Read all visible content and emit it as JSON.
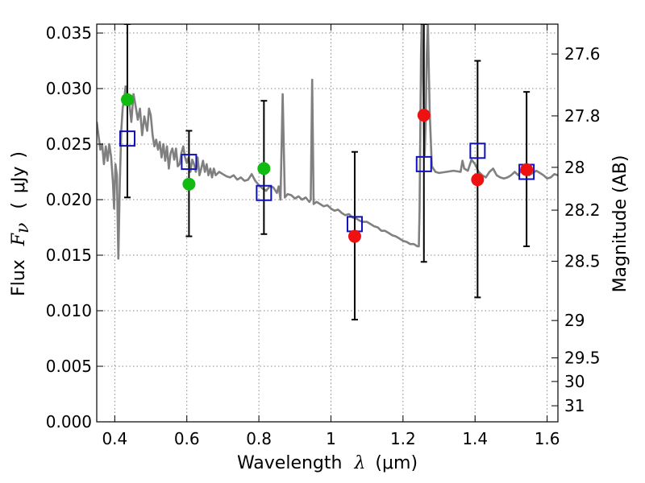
{
  "chart_data": {
    "type": "scatter",
    "xlabel": {
      "text": "Wavelength",
      "symbol": "λ",
      "unit_open": "(",
      "unit": "μm",
      "unit_close": ")"
    },
    "ylabel": {
      "text": "Flux",
      "symbol": "F",
      "subscript": "ν",
      "unit_open": "(",
      "unit": "μJy",
      "unit_close": ")"
    },
    "y2label": "Magnitude (AB)",
    "xlim": [
      0.35,
      1.63
    ],
    "ylim": [
      0.0,
      0.0358
    ],
    "xticks": [
      0.4,
      0.6,
      0.8,
      1.0,
      1.2,
      1.4,
      1.6
    ],
    "xtick_labels": [
      "0.4",
      "0.6",
      "0.8",
      "1",
      "1.2",
      "1.4",
      "1.6"
    ],
    "yticks": [
      0.0,
      0.005,
      0.01,
      0.015,
      0.02,
      0.025,
      0.03,
      0.035
    ],
    "ytick_labels": [
      "0.000",
      "0.005",
      "0.010",
      "0.015",
      "0.020",
      "0.025",
      "0.030",
      "0.035"
    ],
    "y2ticks": [
      {
        "mag": 27.6,
        "label": "27.6"
      },
      {
        "mag": 27.8,
        "label": "27.8"
      },
      {
        "mag": 28.0,
        "label": "28"
      },
      {
        "mag": 28.2,
        "label": "28.2"
      },
      {
        "mag": 28.5,
        "label": "28.5"
      },
      {
        "mag": 29.0,
        "label": "29"
      },
      {
        "mag": 29.5,
        "label": "29.5"
      },
      {
        "mag": 30.0,
        "label": "30"
      },
      {
        "mag": 31.0,
        "label": "31"
      }
    ],
    "grid": true,
    "model_points": [
      {
        "x": 0.435,
        "y": 0.0255,
        "yerr_low": 0.0202,
        "yerr_high": 0.0358
      },
      {
        "x": 0.606,
        "y": 0.0234,
        "yerr_low": 0.0167,
        "yerr_high": 0.0262
      },
      {
        "x": 0.814,
        "y": 0.0206,
        "yerr_low": 0.0169,
        "yerr_high": 0.0289
      },
      {
        "x": 1.066,
        "y": 0.0178,
        "yerr_low": 0.0092,
        "yerr_high": 0.0243
      },
      {
        "x": 1.258,
        "y": 0.0232,
        "yerr_low": 0.0144,
        "yerr_high": 0.0358
      },
      {
        "x": 1.407,
        "y": 0.0244,
        "yerr_low": 0.0112,
        "yerr_high": 0.0325
      },
      {
        "x": 1.543,
        "y": 0.0225,
        "yerr_low": 0.0158,
        "yerr_high": 0.0297
      }
    ],
    "detections": [
      {
        "x": 0.435,
        "y": 0.029,
        "color": "#11bb11"
      },
      {
        "x": 0.606,
        "y": 0.0214,
        "color": "#11bb11"
      },
      {
        "x": 0.814,
        "y": 0.0228,
        "color": "#11bb11"
      },
      {
        "x": 1.066,
        "y": 0.0167,
        "color": "#ee1111"
      },
      {
        "x": 1.258,
        "y": 0.0276,
        "color": "#ee1111"
      },
      {
        "x": 1.407,
        "y": 0.0218,
        "color": "#ee1111"
      },
      {
        "x": 1.543,
        "y": 0.0227,
        "color": "#ee1111"
      }
    ],
    "spectrum": [
      [
        0.35,
        0.027
      ],
      [
        0.36,
        0.0245
      ],
      [
        0.365,
        0.025
      ],
      [
        0.37,
        0.0232
      ],
      [
        0.375,
        0.0248
      ],
      [
        0.38,
        0.0235
      ],
      [
        0.385,
        0.025
      ],
      [
        0.39,
        0.0238
      ],
      [
        0.395,
        0.0215
      ],
      [
        0.398,
        0.0192
      ],
      [
        0.402,
        0.0232
      ],
      [
        0.406,
        0.0222
      ],
      [
        0.41,
        0.0147
      ],
      [
        0.414,
        0.0215
      ],
      [
        0.418,
        0.0262
      ],
      [
        0.422,
        0.0283
      ],
      [
        0.426,
        0.029
      ],
      [
        0.43,
        0.0302
      ],
      [
        0.435,
        0.0295
      ],
      [
        0.44,
        0.0288
      ],
      [
        0.446,
        0.027
      ],
      [
        0.452,
        0.0295
      ],
      [
        0.458,
        0.0284
      ],
      [
        0.464,
        0.0272
      ],
      [
        0.47,
        0.0282
      ],
      [
        0.476,
        0.0258
      ],
      [
        0.482,
        0.0275
      ],
      [
        0.486,
        0.0268
      ],
      [
        0.49,
        0.0262
      ],
      [
        0.495,
        0.0282
      ],
      [
        0.5,
        0.0276
      ],
      [
        0.505,
        0.0258
      ],
      [
        0.51,
        0.0248
      ],
      [
        0.515,
        0.0254
      ],
      [
        0.52,
        0.0245
      ],
      [
        0.525,
        0.0252
      ],
      [
        0.53,
        0.0238
      ],
      [
        0.535,
        0.025
      ],
      [
        0.54,
        0.0235
      ],
      [
        0.545,
        0.0248
      ],
      [
        0.55,
        0.0228
      ],
      [
        0.555,
        0.0242
      ],
      [
        0.56,
        0.0246
      ],
      [
        0.565,
        0.0236
      ],
      [
        0.57,
        0.0246
      ],
      [
        0.575,
        0.023
      ],
      [
        0.58,
        0.0232
      ],
      [
        0.585,
        0.0242
      ],
      [
        0.59,
        0.0248
      ],
      [
        0.595,
        0.0238
      ],
      [
        0.6,
        0.0233
      ],
      [
        0.605,
        0.0238
      ],
      [
        0.61,
        0.0225
      ],
      [
        0.615,
        0.0236
      ],
      [
        0.62,
        0.0232
      ],
      [
        0.625,
        0.0225
      ],
      [
        0.63,
        0.0238
      ],
      [
        0.635,
        0.0222
      ],
      [
        0.64,
        0.0228
      ],
      [
        0.645,
        0.0235
      ],
      [
        0.65,
        0.0225
      ],
      [
        0.655,
        0.0232
      ],
      [
        0.66,
        0.0222
      ],
      [
        0.665,
        0.0228
      ],
      [
        0.67,
        0.022
      ],
      [
        0.675,
        0.0228
      ],
      [
        0.68,
        0.0222
      ],
      [
        0.69,
        0.0225
      ],
      [
        0.7,
        0.0223
      ],
      [
        0.71,
        0.0221
      ],
      [
        0.72,
        0.022
      ],
      [
        0.73,
        0.0222
      ],
      [
        0.74,
        0.0218
      ],
      [
        0.75,
        0.022
      ],
      [
        0.76,
        0.0217
      ],
      [
        0.77,
        0.0218
      ],
      [
        0.78,
        0.0223
      ],
      [
        0.79,
        0.0217
      ],
      [
        0.8,
        0.0213
      ],
      [
        0.81,
        0.021
      ],
      [
        0.82,
        0.0208
      ],
      [
        0.83,
        0.0212
      ],
      [
        0.84,
        0.0211
      ],
      [
        0.85,
        0.0206
      ],
      [
        0.855,
        0.0212
      ],
      [
        0.86,
        0.02
      ],
      [
        0.866,
        0.0295
      ],
      [
        0.872,
        0.0202
      ],
      [
        0.88,
        0.0205
      ],
      [
        0.89,
        0.0204
      ],
      [
        0.9,
        0.0201
      ],
      [
        0.91,
        0.0203
      ],
      [
        0.92,
        0.02
      ],
      [
        0.93,
        0.0202
      ],
      [
        0.94,
        0.0198
      ],
      [
        0.944,
        0.02
      ],
      [
        0.948,
        0.0308
      ],
      [
        0.952,
        0.0196
      ],
      [
        0.96,
        0.0198
      ],
      [
        0.97,
        0.0196
      ],
      [
        0.98,
        0.0194
      ],
      [
        0.99,
        0.0195
      ],
      [
        1.0,
        0.0192
      ],
      [
        1.01,
        0.019
      ],
      [
        1.02,
        0.0191
      ],
      [
        1.03,
        0.0188
      ],
      [
        1.04,
        0.0186
      ],
      [
        1.05,
        0.0187
      ],
      [
        1.06,
        0.0184
      ],
      [
        1.07,
        0.0183
      ],
      [
        1.08,
        0.0181
      ],
      [
        1.09,
        0.018
      ],
      [
        1.1,
        0.018
      ],
      [
        1.11,
        0.0178
      ],
      [
        1.12,
        0.0176
      ],
      [
        1.13,
        0.0175
      ],
      [
        1.14,
        0.0172
      ],
      [
        1.15,
        0.0172
      ],
      [
        1.16,
        0.017
      ],
      [
        1.17,
        0.0168
      ],
      [
        1.18,
        0.0167
      ],
      [
        1.19,
        0.0165
      ],
      [
        1.2,
        0.0163
      ],
      [
        1.21,
        0.0162
      ],
      [
        1.22,
        0.016
      ],
      [
        1.23,
        0.016
      ],
      [
        1.24,
        0.0158
      ],
      [
        1.244,
        0.0158
      ],
      [
        1.246,
        0.019
      ],
      [
        1.248,
        0.026
      ],
      [
        1.25,
        0.033
      ],
      [
        1.252,
        0.036
      ],
      [
        1.256,
        0.03
      ],
      [
        1.26,
        0.024
      ],
      [
        1.263,
        0.027
      ],
      [
        1.266,
        0.033
      ],
      [
        1.269,
        0.036
      ],
      [
        1.274,
        0.028
      ],
      [
        1.28,
        0.023
      ],
      [
        1.29,
        0.0225
      ],
      [
        1.3,
        0.0224
      ],
      [
        1.32,
        0.0225
      ],
      [
        1.34,
        0.0226
      ],
      [
        1.36,
        0.0225
      ],
      [
        1.365,
        0.0235
      ],
      [
        1.37,
        0.0228
      ],
      [
        1.38,
        0.0226
      ],
      [
        1.39,
        0.0236
      ],
      [
        1.4,
        0.0232
      ],
      [
        1.41,
        0.0225
      ],
      [
        1.42,
        0.0222
      ],
      [
        1.43,
        0.022
      ],
      [
        1.44,
        0.0225
      ],
      [
        1.45,
        0.0228
      ],
      [
        1.46,
        0.0222
      ],
      [
        1.47,
        0.022
      ],
      [
        1.48,
        0.0219
      ],
      [
        1.49,
        0.022
      ],
      [
        1.5,
        0.0222
      ],
      [
        1.51,
        0.0225
      ],
      [
        1.52,
        0.0222
      ],
      [
        1.53,
        0.0228
      ],
      [
        1.54,
        0.0226
      ],
      [
        1.55,
        0.0222
      ],
      [
        1.56,
        0.0224
      ],
      [
        1.57,
        0.0226
      ],
      [
        1.58,
        0.0224
      ],
      [
        1.59,
        0.0222
      ],
      [
        1.6,
        0.0219
      ],
      [
        1.61,
        0.022
      ],
      [
        1.62,
        0.0223
      ],
      [
        1.63,
        0.0222
      ]
    ],
    "colors": {
      "spectrum": "#808080",
      "model_box": "#1010b8",
      "errorbar": "#000000"
    }
  }
}
